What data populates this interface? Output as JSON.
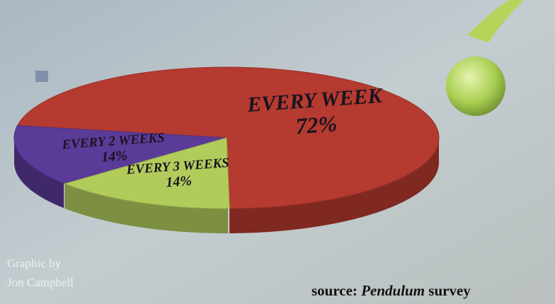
{
  "chart_data": {
    "type": "pie",
    "categories": [
      "EVERY WEEK",
      "EVERY 2 WEEKS",
      "EVERY 3 WEEKS"
    ],
    "values": [
      72,
      14,
      14
    ],
    "value_labels": [
      "72%",
      "14%",
      "14%"
    ],
    "colors": [
      "#b53a2f",
      "#5b3b98",
      "#b2cc5c"
    ],
    "credit": [
      "Graphic by",
      "Jon Campbell"
    ],
    "source": {
      "prefix": "source:",
      "name": "Pendulum",
      "suffix": "survey"
    }
  }
}
